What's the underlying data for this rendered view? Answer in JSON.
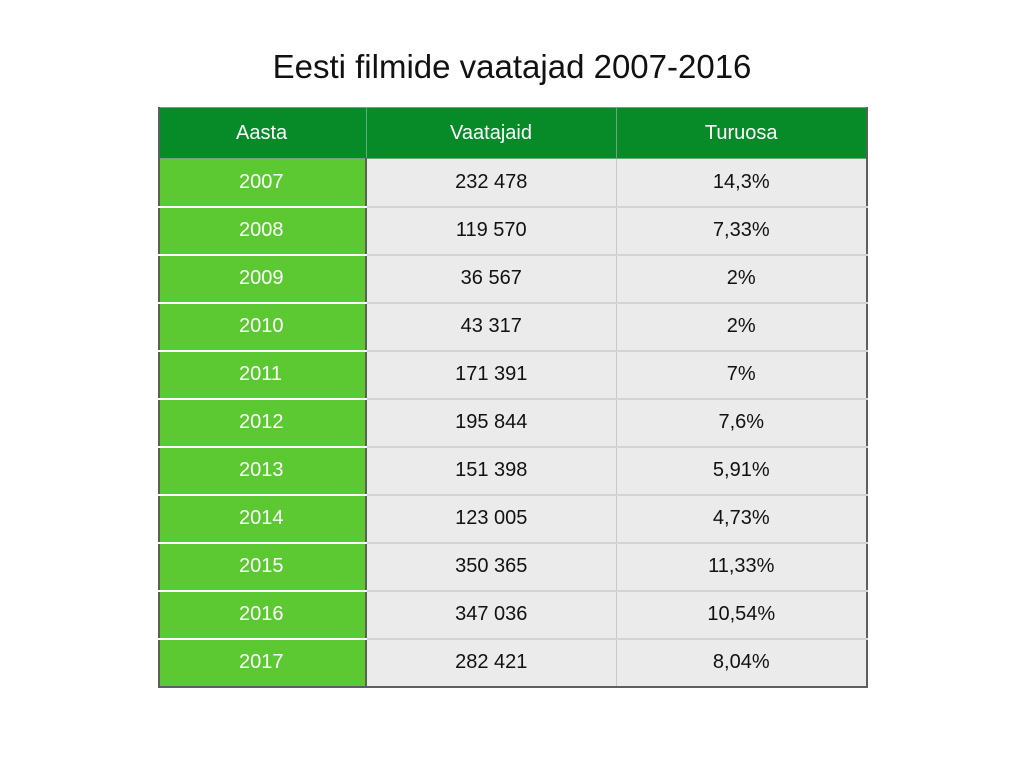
{
  "title": "Eesti filmide vaatajad 2007-2016",
  "table": {
    "headers": [
      "Aasta",
      "Vaatajaid",
      "Turuosa"
    ],
    "rows": [
      [
        "2007",
        "232 478",
        "14,3%"
      ],
      [
        "2008",
        "119 570",
        "7,33%"
      ],
      [
        "2009",
        "36 567",
        "2%"
      ],
      [
        "2010",
        "43 317",
        "2%"
      ],
      [
        "2011",
        "171 391",
        "7%"
      ],
      [
        "2012",
        "195 844",
        "7,6%"
      ],
      [
        "2013",
        "151 398",
        "5,91%"
      ],
      [
        "2014",
        "123 005",
        "4,73%"
      ],
      [
        "2015",
        "350 365",
        "11,33%"
      ],
      [
        "2016",
        "347 036",
        "10,54%"
      ],
      [
        "2017",
        "282 421",
        "8,04%"
      ]
    ]
  },
  "colors": {
    "header_bg": "#078a28",
    "year_bg": "#5cc832",
    "cell_bg": "#ebebeb"
  }
}
